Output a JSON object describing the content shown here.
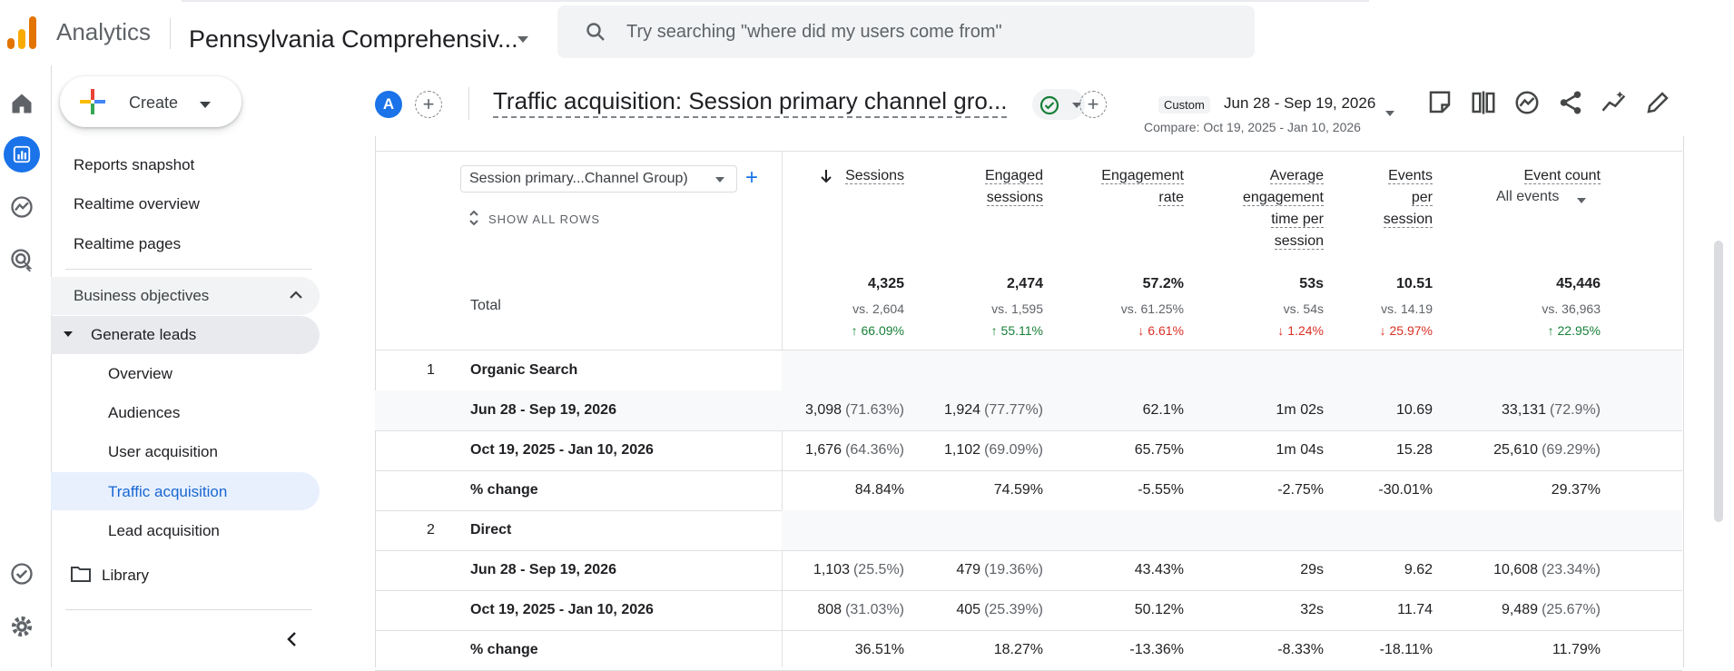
{
  "topbar": {
    "brand": "Analytics",
    "property": "Pennsylvania Comprehensiv...",
    "search_placeholder": "Try searching \"where did my users come from\""
  },
  "nav": {
    "create_label": "Create",
    "items": [
      {
        "label": "Reports snapshot"
      },
      {
        "label": "Realtime overview"
      },
      {
        "label": "Realtime pages"
      }
    ],
    "section": "Business objectives",
    "group": "Generate leads",
    "sub_items": [
      {
        "label": "Overview"
      },
      {
        "label": "Audiences"
      },
      {
        "label": "User acquisition"
      },
      {
        "label": "Traffic acquisition"
      },
      {
        "label": "Lead acquisition"
      }
    ],
    "library": "Library"
  },
  "header": {
    "avatar_letter": "A",
    "title": "Traffic acquisition: Session primary channel gro...",
    "date_badge": "Custom",
    "date_range": "Jun 28 - Sep 19, 2026",
    "compare": "Compare: Oct 19, 2025 - Jan 10, 2026"
  },
  "table": {
    "dimension": "Session primary...Channel Group)",
    "show_all": "SHOW ALL ROWS",
    "columns": {
      "sessions": "Sessions",
      "engaged": [
        "Engaged",
        "sessions"
      ],
      "engagement_rate": [
        "Engagement",
        "rate"
      ],
      "avg_time": [
        "Average",
        "engagement",
        "time per",
        "session"
      ],
      "events_per": [
        "Events",
        "per",
        "session"
      ],
      "event_count": "Event count",
      "event_filter": "All events"
    },
    "total": {
      "label": "Total",
      "values": [
        "4,325",
        "2,474",
        "57.2%",
        "53s",
        "10.51",
        "45,446"
      ],
      "compare": [
        "vs. 2,604",
        "vs. 1,595",
        "vs. 61.25%",
        "vs. 54s",
        "vs. 14.19",
        "vs. 36,963"
      ],
      "change": [
        "↑ 66.09%",
        "↑ 55.11%",
        "↓ 6.61%",
        "↓ 1.24%",
        "↓ 25.97%",
        "↑ 22.95%"
      ]
    },
    "groups": [
      {
        "index": "1",
        "name": "Organic Search",
        "rows": [
          {
            "label": "Jun 28 - Sep 19, 2026",
            "sessions": "3,098",
            "sessions_pct": "(71.63%)",
            "engaged": "1,924",
            "engaged_pct": "(77.77%)",
            "rate": "62.1%",
            "time": "1m 02s",
            "events": "10.69",
            "count": "33,131",
            "count_pct": "(72.9%)"
          },
          {
            "label": "Oct 19, 2025 - Jan 10, 2026",
            "sessions": "1,676",
            "sessions_pct": "(64.36%)",
            "engaged": "1,102",
            "engaged_pct": "(69.09%)",
            "rate": "65.75%",
            "time": "1m 04s",
            "events": "15.28",
            "count": "25,610",
            "count_pct": "(69.29%)"
          },
          {
            "label": "% change",
            "sessions": "84.84%",
            "sessions_pct": "",
            "engaged": "74.59%",
            "engaged_pct": "",
            "rate": "-5.55%",
            "time": "-2.75%",
            "events": "-30.01%",
            "count": "29.37%",
            "count_pct": ""
          }
        ]
      },
      {
        "index": "2",
        "name": "Direct",
        "rows": [
          {
            "label": "Jun 28 - Sep 19, 2026",
            "sessions": "1,103",
            "sessions_pct": "(25.5%)",
            "engaged": "479",
            "engaged_pct": "(19.36%)",
            "rate": "43.43%",
            "time": "29s",
            "events": "9.62",
            "count": "10,608",
            "count_pct": "(23.34%)"
          },
          {
            "label": "Oct 19, 2025 - Jan 10, 2026",
            "sessions": "808",
            "sessions_pct": "(31.03%)",
            "engaged": "405",
            "engaged_pct": "(25.39%)",
            "rate": "50.12%",
            "time": "32s",
            "events": "11.74",
            "count": "9,489",
            "count_pct": "(25.67%)"
          },
          {
            "label": "% change",
            "sessions": "36.51%",
            "sessions_pct": "",
            "engaged": "18.27%",
            "engaged_pct": "",
            "rate": "-13.36%",
            "time": "-8.33%",
            "events": "-18.11%",
            "count": "11.79%",
            "count_pct": ""
          }
        ]
      }
    ]
  },
  "colors": {
    "accent": "#1a73e8",
    "active_bg": "#e8f0fe",
    "section_bg": "#f1f3f4",
    "up": "#188038",
    "down": "#d93025"
  },
  "icons": [
    "home-icon",
    "reports-icon",
    "explore-icon",
    "advertising-icon",
    "admin-check-icon",
    "settings-icon",
    "search-icon",
    "folder-icon",
    "collapse-icon",
    "edit-icon",
    "share-icon",
    "insights-icon",
    "compare-icon",
    "customize-icon",
    "save-icon"
  ]
}
